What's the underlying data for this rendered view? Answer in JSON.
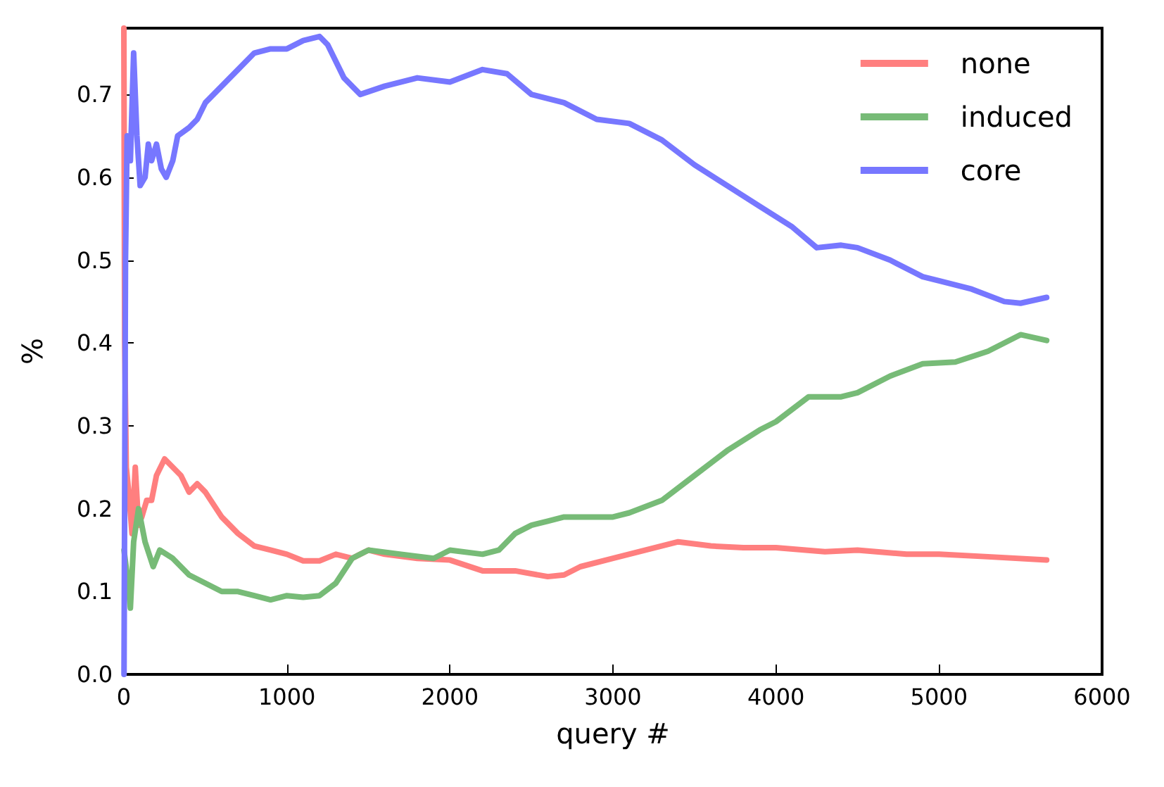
{
  "chart_data": {
    "type": "line",
    "xlabel": "query #",
    "ylabel": "%",
    "xlim": [
      0,
      6000
    ],
    "ylim": [
      0,
      0.78
    ],
    "xticks": [
      0,
      1000,
      2000,
      3000,
      4000,
      5000,
      6000
    ],
    "yticks": [
      {
        "value": 0,
        "label": "0.0"
      },
      {
        "value": 0.1,
        "label": "0.1"
      },
      {
        "value": 0.2,
        "label": "0.2"
      },
      {
        "value": 0.3,
        "label": "0.3"
      },
      {
        "value": 0.4,
        "label": "0.4"
      },
      {
        "value": 0.5,
        "label": "0.5"
      },
      {
        "value": 0.6,
        "label": "0.6"
      },
      {
        "value": 0.7,
        "label": "0.7"
      }
    ],
    "grid": false,
    "legend": "top right",
    "marker": "none",
    "line_style": "solid",
    "series": [
      {
        "name": "none",
        "color": "#ff7f7f",
        "x": [
          0,
          5,
          15,
          30,
          50,
          70,
          90,
          110,
          140,
          170,
          200,
          250,
          300,
          350,
          400,
          450,
          500,
          600,
          700,
          800,
          900,
          1000,
          1100,
          1200,
          1300,
          1400,
          1500,
          1600,
          1800,
          2000,
          2200,
          2400,
          2600,
          2700,
          2800,
          3000,
          3200,
          3400,
          3600,
          3800,
          4000,
          4300,
          4500,
          4800,
          5000,
          5300,
          5660
        ],
        "values": [
          0.78,
          0.4,
          0.25,
          0.22,
          0.17,
          0.25,
          0.18,
          0.19,
          0.21,
          0.21,
          0.24,
          0.26,
          0.25,
          0.24,
          0.22,
          0.23,
          0.22,
          0.19,
          0.17,
          0.155,
          0.15,
          0.145,
          0.137,
          0.137,
          0.145,
          0.14,
          0.15,
          0.145,
          0.14,
          0.138,
          0.125,
          0.125,
          0.118,
          0.12,
          0.13,
          0.14,
          0.15,
          0.16,
          0.155,
          0.153,
          0.153,
          0.148,
          0.15,
          0.145,
          0.145,
          0.142,
          0.138
        ]
      },
      {
        "name": "induced",
        "color": "#77bb77",
        "x": [
          1,
          20,
          40,
          60,
          90,
          130,
          180,
          220,
          300,
          400,
          500,
          600,
          700,
          800,
          900,
          1000,
          1100,
          1200,
          1300,
          1400,
          1500,
          1700,
          1900,
          2000,
          2200,
          2300,
          2400,
          2500,
          2600,
          2700,
          2900,
          3000,
          3100,
          3300,
          3500,
          3700,
          3900,
          4000,
          4200,
          4400,
          4500,
          4700,
          4900,
          5000,
          5100,
          5300,
          5500,
          5660
        ],
        "values": [
          0.15,
          0.12,
          0.08,
          0.16,
          0.2,
          0.16,
          0.13,
          0.15,
          0.14,
          0.12,
          0.11,
          0.1,
          0.1,
          0.095,
          0.09,
          0.095,
          0.093,
          0.095,
          0.11,
          0.14,
          0.15,
          0.145,
          0.14,
          0.15,
          0.145,
          0.15,
          0.17,
          0.18,
          0.185,
          0.19,
          0.19,
          0.19,
          0.195,
          0.21,
          0.24,
          0.27,
          0.295,
          0.305,
          0.335,
          0.335,
          0.34,
          0.36,
          0.375,
          0.376,
          0.377,
          0.39,
          0.41,
          0.403
        ]
      },
      {
        "name": "core",
        "color": "#7777ff",
        "x": [
          1,
          10,
          20,
          40,
          60,
          80,
          100,
          130,
          150,
          170,
          200,
          230,
          260,
          300,
          330,
          400,
          450,
          500,
          600,
          700,
          800,
          900,
          1000,
          1100,
          1200,
          1250,
          1350,
          1450,
          1600,
          1800,
          2000,
          2200,
          2350,
          2500,
          2700,
          2900,
          3100,
          3300,
          3500,
          3700,
          3900,
          4100,
          4250,
          4400,
          4500,
          4700,
          4900,
          5000,
          5200,
          5400,
          5500,
          5660
        ],
        "values": [
          0,
          0.5,
          0.65,
          0.62,
          0.75,
          0.65,
          0.59,
          0.6,
          0.64,
          0.62,
          0.64,
          0.61,
          0.6,
          0.62,
          0.65,
          0.66,
          0.67,
          0.69,
          0.71,
          0.73,
          0.75,
          0.755,
          0.755,
          0.765,
          0.77,
          0.76,
          0.72,
          0.7,
          0.71,
          0.72,
          0.715,
          0.73,
          0.725,
          0.7,
          0.69,
          0.67,
          0.665,
          0.645,
          0.615,
          0.59,
          0.565,
          0.54,
          0.515,
          0.518,
          0.515,
          0.5,
          0.48,
          0.475,
          0.465,
          0.45,
          0.448,
          0.455
        ]
      }
    ]
  }
}
